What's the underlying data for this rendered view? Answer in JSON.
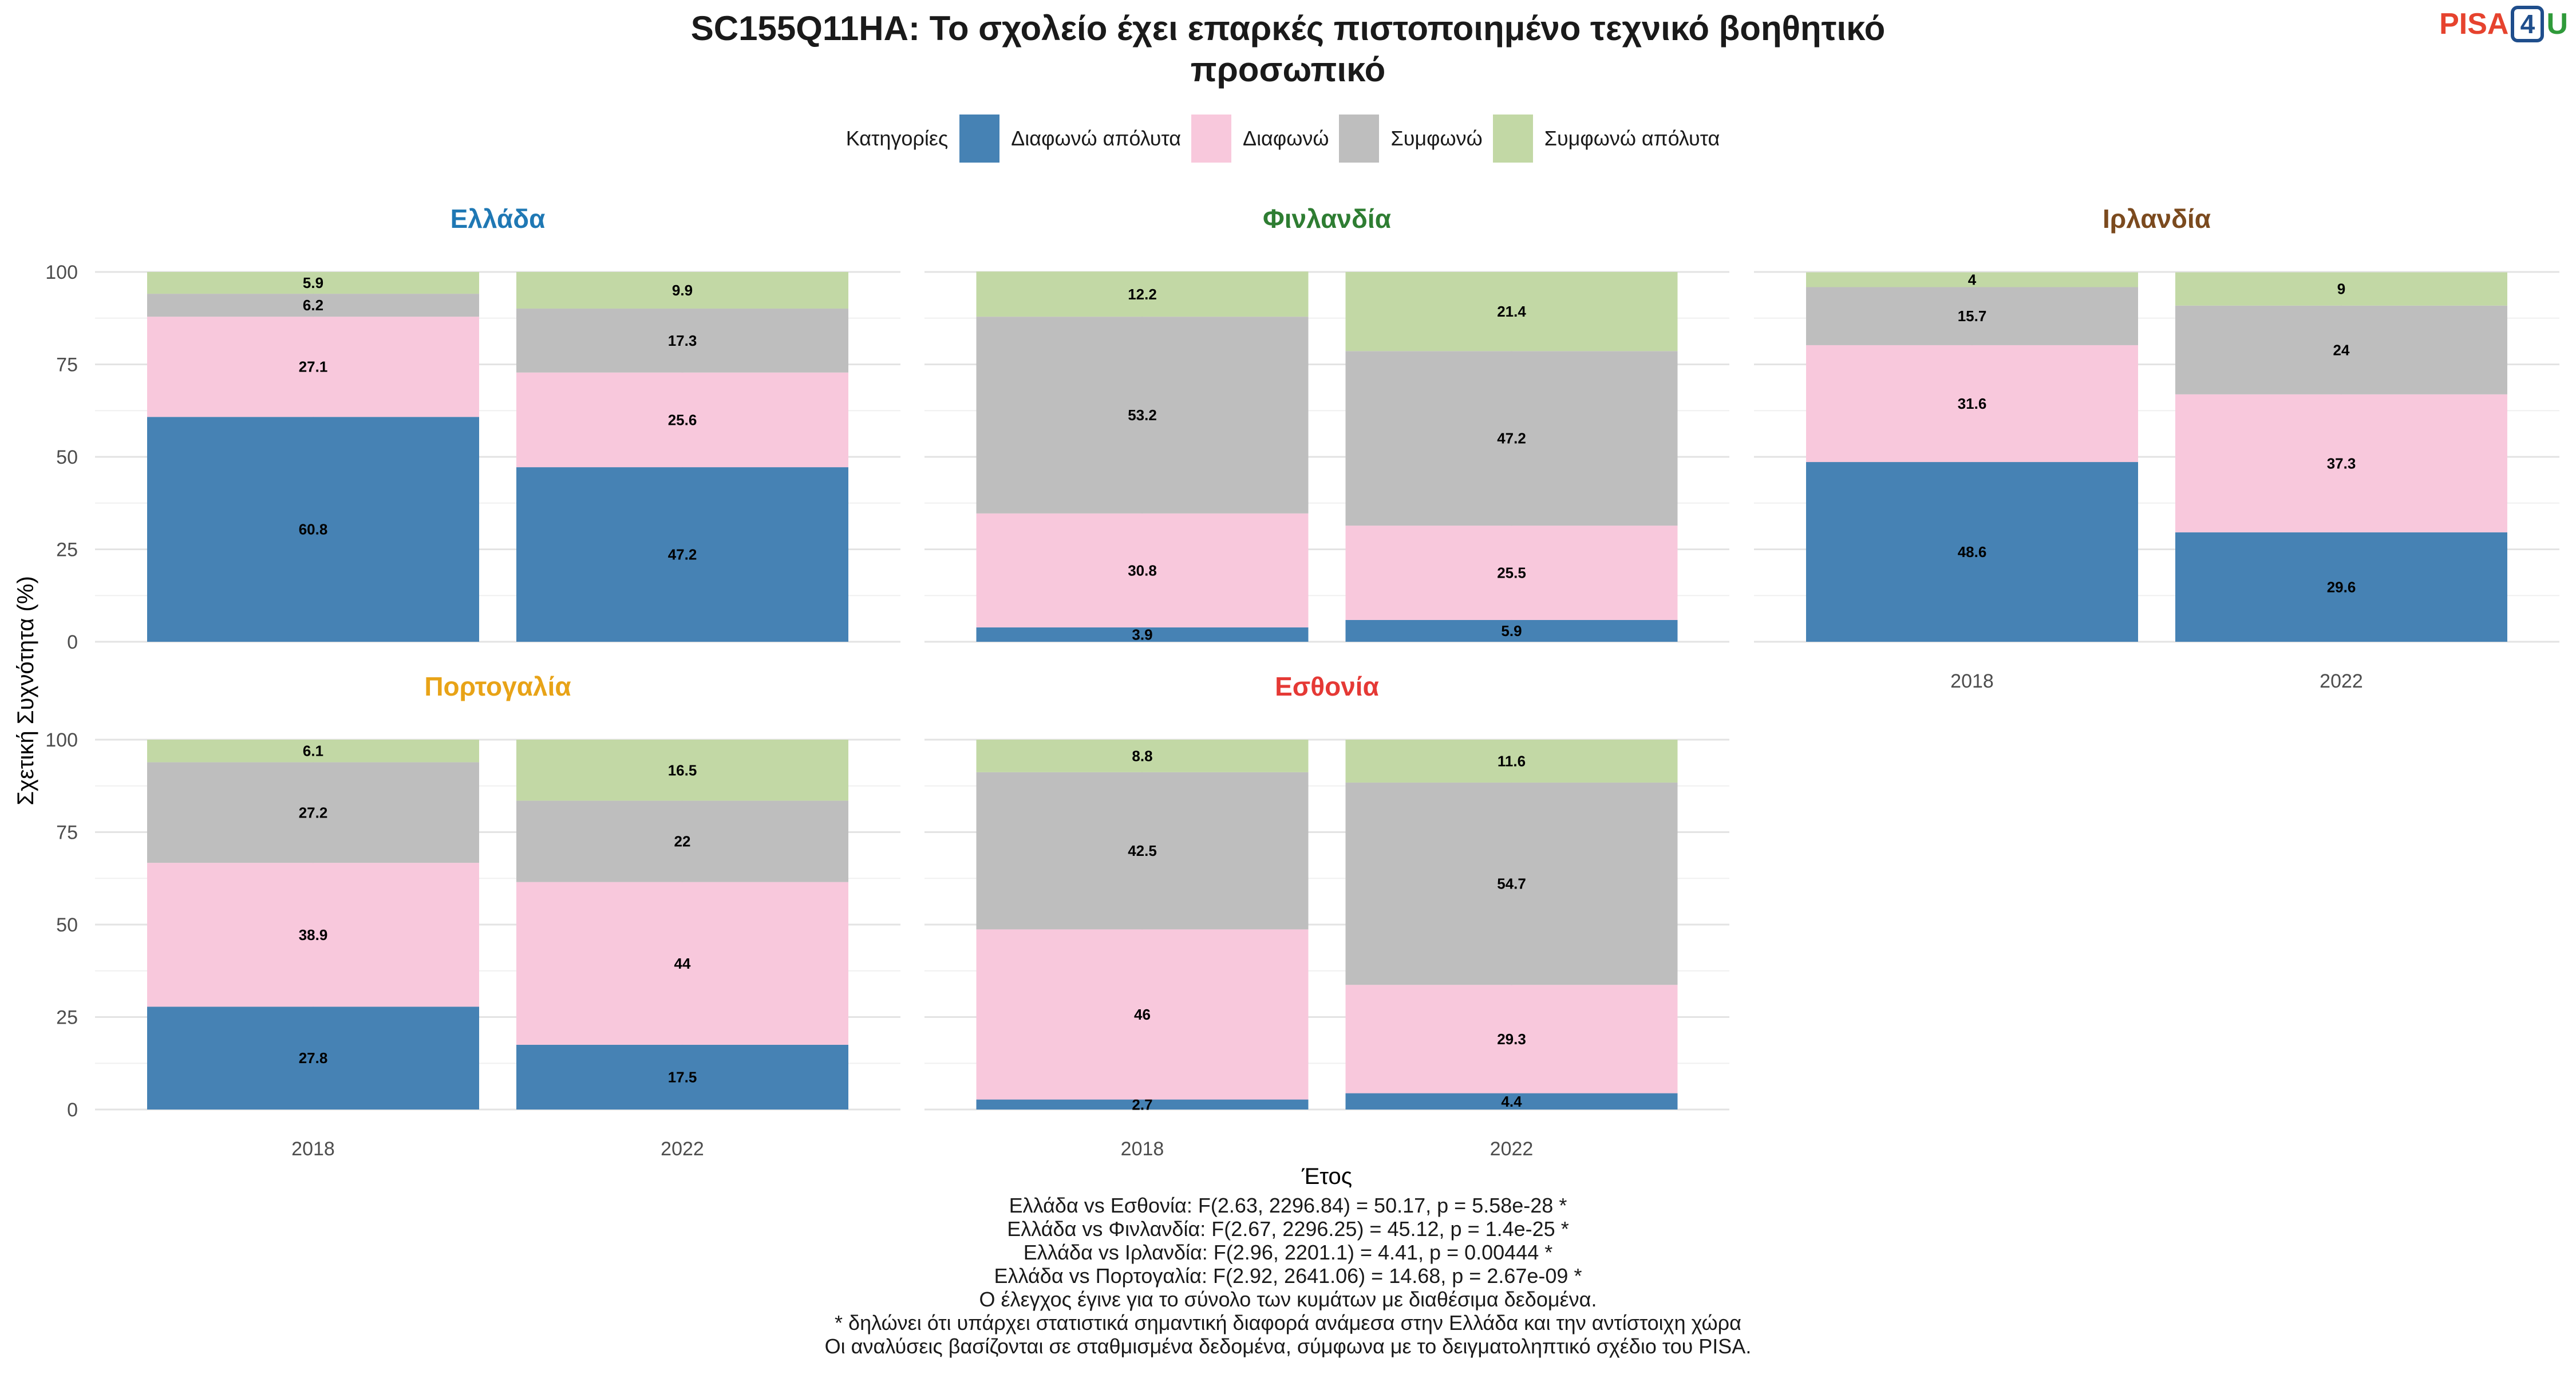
{
  "title_lines": [
    "SC155Q11HA: Το σχολείο έχει επαρκές πιστοποιημένο τεχνικό βοηθητικό",
    "προσωπικό"
  ],
  "logo": {
    "pisa": "PISA",
    "four": "4",
    "u": "U"
  },
  "legend_title": "Κατηγορίες",
  "categories": [
    {
      "name": "Διαφωνώ απόλυτα",
      "color": "#4682b4"
    },
    {
      "name": "Διαφωνώ",
      "color": "#f8c8dc"
    },
    {
      "name": "Συμφωνώ",
      "color": "#bebebe"
    },
    {
      "name": "Συμφωνώ απόλυτα",
      "color": "#c2d8a5"
    }
  ],
  "chart_data": {
    "type": "bar",
    "stacked": true,
    "xlabel": "Έτος",
    "ylabel": "Σχετική Συχνότητα (%)",
    "ylim": [
      0,
      100
    ],
    "yticks": [
      0,
      25,
      50,
      75,
      100
    ],
    "categories": [
      "2018",
      "2022"
    ],
    "panels": [
      {
        "country": "Ελλάδα",
        "color": "#1f78b4",
        "series": [
          {
            "name": "Διαφωνώ απόλυτα",
            "values": [
              60.8,
              47.2
            ]
          },
          {
            "name": "Διαφωνώ",
            "values": [
              27.1,
              25.6
            ]
          },
          {
            "name": "Συμφωνώ",
            "values": [
              6.2,
              17.3
            ]
          },
          {
            "name": "Συμφωνώ απόλυτα",
            "values": [
              5.9,
              9.9
            ]
          }
        ]
      },
      {
        "country": "Φινλανδία",
        "color": "#2e7d32",
        "series": [
          {
            "name": "Διαφωνώ απόλυτα",
            "values": [
              3.9,
              5.9
            ]
          },
          {
            "name": "Διαφωνώ",
            "values": [
              30.8,
              25.5
            ]
          },
          {
            "name": "Συμφωνώ",
            "values": [
              53.2,
              47.2
            ]
          },
          {
            "name": "Συμφωνώ απόλυτα",
            "values": [
              12.2,
              21.4
            ]
          }
        ]
      },
      {
        "country": "Ιρλανδία",
        "color": "#7b4a1e",
        "series": [
          {
            "name": "Διαφωνώ απόλυτα",
            "values": [
              48.6,
              29.6
            ]
          },
          {
            "name": "Διαφωνώ",
            "values": [
              31.6,
              37.3
            ]
          },
          {
            "name": "Συμφωνώ",
            "values": [
              15.7,
              24
            ]
          },
          {
            "name": "Συμφωνώ απόλυτα",
            "values": [
              4,
              9
            ]
          }
        ]
      },
      {
        "country": "Πορτογαλία",
        "color": "#e8a317",
        "series": [
          {
            "name": "Διαφωνώ απόλυτα",
            "values": [
              27.8,
              17.5
            ]
          },
          {
            "name": "Διαφωνώ",
            "values": [
              38.9,
              44
            ]
          },
          {
            "name": "Συμφωνώ",
            "values": [
              27.2,
              22
            ]
          },
          {
            "name": "Συμφωνώ απόλυτα",
            "values": [
              6.1,
              16.5
            ]
          }
        ]
      },
      {
        "country": "Εσθονία",
        "color": "#e53935",
        "series": [
          {
            "name": "Διαφωνώ απόλυτα",
            "values": [
              2.7,
              4.4
            ]
          },
          {
            "name": "Διαφωνώ",
            "values": [
              46,
              29.3
            ]
          },
          {
            "name": "Συμφωνώ",
            "values": [
              42.5,
              54.7
            ]
          },
          {
            "name": "Συμφωνώ απόλυτα",
            "values": [
              8.8,
              11.6
            ]
          }
        ]
      }
    ]
  },
  "footer_lines": [
    "Ελλάδα vs Εσθονία: F(2.63, 2296.84) = 50.17, p = 5.58e-28 *",
    "Ελλάδα vs Φινλανδία: F(2.67, 2296.25) = 45.12, p = 1.4e-25 *",
    "Ελλάδα vs Ιρλανδία: F(2.96, 2201.1) = 4.41, p = 0.00444 *",
    "Ελλάδα vs Πορτογαλία: F(2.92, 2641.06) = 14.68, p = 2.67e-09 *",
    "Ο έλεγχος έγινε για το σύνολο των κυμάτων με διαθέσιμα δεδομένα.",
    "* δηλώνει ότι υπάρχει στατιστικά σημαντική διαφορά ανάμεσα στην Ελλάδα και την αντίστοιχη χώρα",
    "Οι αναλύσεις βασίζονται σε σταθμισμένα δεδομένα, σύμφωνα με το δειγματοληπτικό σχέδιο του PISA."
  ]
}
